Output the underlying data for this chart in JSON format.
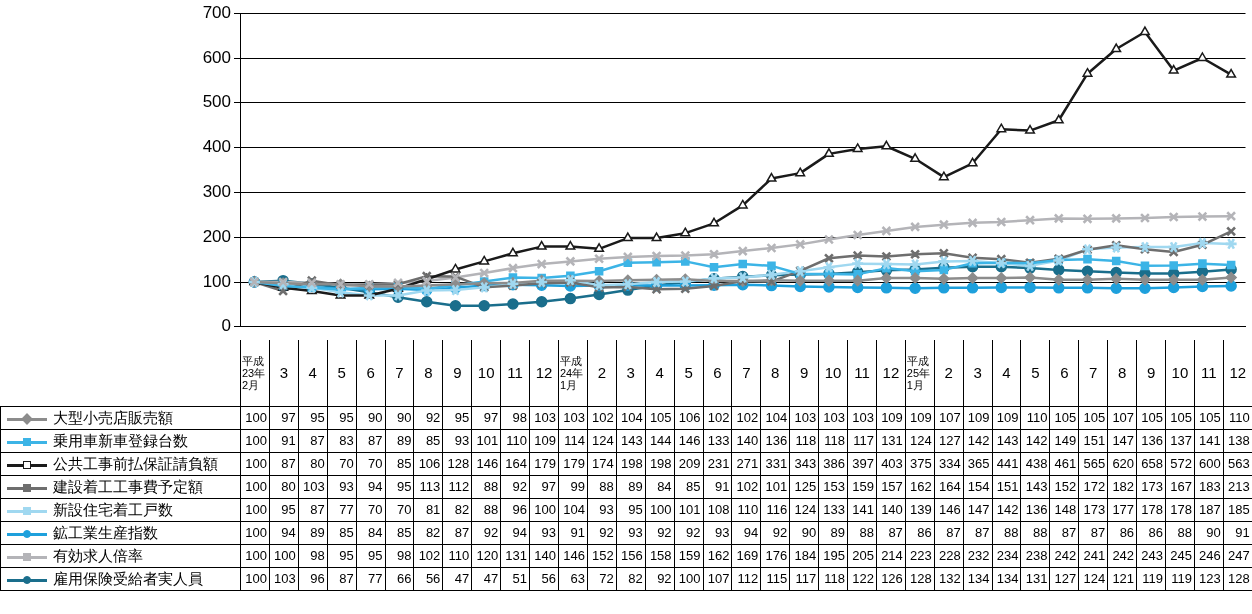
{
  "chart_data": {
    "type": "line",
    "categories": [
      "平成23年2月",
      "3",
      "4",
      "5",
      "6",
      "7",
      "8",
      "9",
      "10",
      "11",
      "12",
      "平成24年1月",
      "2",
      "3",
      "4",
      "5",
      "6",
      "7",
      "8",
      "9",
      "10",
      "11",
      "12",
      "平成25年1月",
      "2",
      "3",
      "4",
      "5",
      "6",
      "7",
      "8",
      "9",
      "10",
      "11",
      "12"
    ],
    "series": [
      {
        "name": "大型小売店販売額",
        "color": "#8c8c8c",
        "marker": "diamond",
        "values": [
          100,
          97,
          95,
          95,
          90,
          90,
          92,
          95,
          97,
          98,
          103,
          103,
          102,
          104,
          105,
          106,
          102,
          102,
          104,
          103,
          103,
          103,
          109,
          109,
          107,
          109,
          109,
          110,
          105,
          105,
          107,
          105,
          105,
          105,
          110
        ]
      },
      {
        "name": "乗用車新車登録台数",
        "color": "#3cb4e6",
        "marker": "square",
        "values": [
          100,
          91,
          87,
          83,
          87,
          89,
          85,
          93,
          101,
          110,
          109,
          114,
          124,
          143,
          144,
          146,
          133,
          140,
          136,
          118,
          118,
          117,
          131,
          124,
          127,
          142,
          143,
          142,
          149,
          151,
          147,
          136,
          137,
          141,
          138
        ]
      },
      {
        "name": "公共工事前払保証請負額",
        "color": "#1a1a1a",
        "marker": "triangle",
        "values": [
          100,
          87,
          80,
          70,
          70,
          85,
          106,
          128,
          146,
          164,
          179,
          179,
          174,
          198,
          198,
          209,
          231,
          271,
          331,
          343,
          386,
          397,
          403,
          375,
          334,
          365,
          441,
          438,
          461,
          565,
          620,
          658,
          572,
          600,
          563
        ]
      },
      {
        "name": "建設着工工事費予定額",
        "color": "#6e6e6e",
        "marker": "cross",
        "values": [
          100,
          80,
          103,
          93,
          94,
          95,
          113,
          112,
          88,
          92,
          97,
          99,
          88,
          89,
          84,
          85,
          91,
          102,
          101,
          125,
          153,
          159,
          157,
          162,
          164,
          154,
          151,
          143,
          152,
          172,
          182,
          173,
          167,
          183,
          213
        ]
      },
      {
        "name": "新設住宅着工戸数",
        "color": "#a0d8f0",
        "marker": "star",
        "values": [
          100,
          95,
          87,
          77,
          70,
          70,
          81,
          82,
          88,
          96,
          100,
          104,
          93,
          95,
          100,
          101,
          108,
          110,
          116,
          124,
          133,
          141,
          140,
          139,
          146,
          147,
          142,
          136,
          148,
          173,
          177,
          178,
          178,
          187,
          185
        ]
      },
      {
        "name": "鉱工業生産指数",
        "color": "#1ea0dc",
        "marker": "circle",
        "values": [
          100,
          94,
          89,
          85,
          84,
          85,
          82,
          87,
          92,
          94,
          93,
          91,
          92,
          93,
          92,
          92,
          93,
          94,
          92,
          90,
          89,
          88,
          87,
          86,
          87,
          87,
          88,
          88,
          87,
          87,
          86,
          86,
          88,
          90,
          91
        ]
      },
      {
        "name": "有効求人倍率",
        "color": "#b4b4b8",
        "marker": "cross",
        "values": [
          100,
          100,
          98,
          95,
          95,
          98,
          102,
          110,
          120,
          131,
          140,
          146,
          152,
          156,
          158,
          159,
          162,
          169,
          176,
          184,
          195,
          205,
          214,
          223,
          228,
          232,
          234,
          238,
          242,
          241,
          242,
          243,
          245,
          246,
          247
        ]
      },
      {
        "name": "雇用保険受給者実人員",
        "color": "#1a6e8c",
        "marker": "circle",
        "values": [
          100,
          103,
          96,
          87,
          77,
          66,
          56,
          47,
          47,
          51,
          56,
          63,
          72,
          82,
          92,
          100,
          107,
          112,
          115,
          117,
          118,
          122,
          126,
          128,
          132,
          134,
          134,
          131,
          127,
          124,
          121,
          119,
          119,
          123,
          128
        ]
      }
    ],
    "ylim": [
      0,
      700
    ],
    "yticks": [
      0,
      100,
      200,
      300,
      400,
      500,
      600,
      700
    ],
    "grid": "y",
    "legend": "bottom",
    "data_labels": true
  }
}
